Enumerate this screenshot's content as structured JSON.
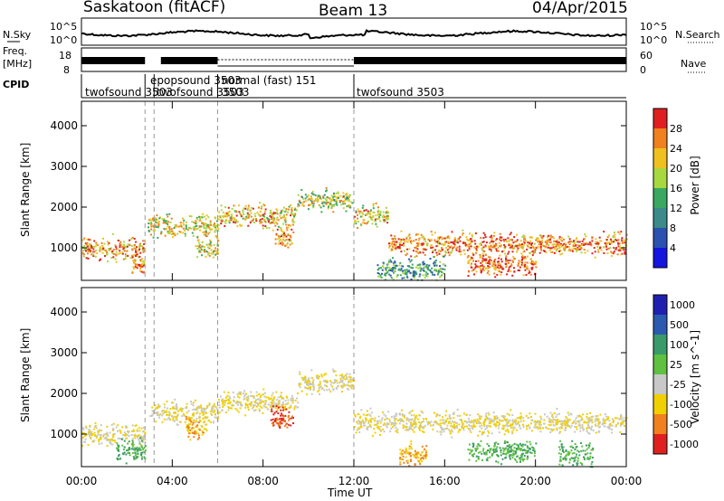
{
  "header": {
    "radar": "Saskatoon (fitACF)",
    "beam": "Beam 13",
    "date": "04/Apr/2015"
  },
  "top_panels": {
    "nsky_label": "N.Sky",
    "nsky_ticks": [
      "10^5",
      "10^0"
    ],
    "nsky_right_ticks": [
      "10^5",
      "10^0"
    ],
    "nsearch_label": "N.Search",
    "freq_label_1": "Freq.",
    "freq_label_2": "[MHz]",
    "freq_ticks": [
      "18",
      "8"
    ],
    "nave_ticks": [
      "60",
      "0"
    ],
    "nave_label": "Nave",
    "cpid_label": "CPID"
  },
  "programs": [
    {
      "name": "twofsound 3503",
      "start": 0.0
    },
    {
      "name": "epopsound 3503",
      "start": 3.2
    },
    {
      "name": "twofsound 3503",
      "start": 3.5
    },
    {
      "name": "normal (fast) 151",
      "start": 6.0
    },
    {
      "name": "3503",
      "start": 6.0
    },
    {
      "name": "twofsound 3503",
      "start": 12.0
    }
  ],
  "chart_data": [
    {
      "type": "heatmap",
      "parameter": "Power",
      "ylabel": "Slant Range [km]",
      "xlabel": "Time UT",
      "xlim": [
        0,
        24
      ],
      "ylim": [
        200,
        4600
      ],
      "x_ticks": [
        "00:00",
        "04:00",
        "08:00",
        "12:00",
        "16:00",
        "20:00",
        "00:00"
      ],
      "y_ticks": [
        1000,
        2000,
        3000,
        4000
      ],
      "colorbar_label": "Power [dB]",
      "colorbar_ticks": [
        4,
        8,
        12,
        16,
        20,
        24,
        28
      ],
      "colors": [
        "#1515e0",
        "#2c52b0",
        "#3c8a8a",
        "#3aa860",
        "#a8d840",
        "#f0c020",
        "#f08020",
        "#e02020"
      ],
      "scatter_bands": [
        {
          "t0": 0.0,
          "t1": 2.8,
          "range": 1000,
          "value": 24
        },
        {
          "t0": 2.2,
          "t1": 2.8,
          "range": 600,
          "value": 24
        },
        {
          "t0": 2.9,
          "t1": 6.0,
          "range": 1550,
          "value": 20
        },
        {
          "t0": 5.0,
          "t1": 6.0,
          "range": 1000,
          "value": 20
        },
        {
          "t0": 6.0,
          "t1": 9.5,
          "range": 1800,
          "value": 22
        },
        {
          "t0": 8.5,
          "t1": 9.3,
          "range": 1300,
          "value": 24
        },
        {
          "t0": 9.5,
          "t1": 11.9,
          "range": 2200,
          "value": 18
        },
        {
          "t0": 12.0,
          "t1": 13.5,
          "range": 1800,
          "value": 22
        },
        {
          "t0": 13.5,
          "t1": 24.0,
          "range": 1100,
          "value": 26
        },
        {
          "t0": 17.0,
          "t1": 20.0,
          "range": 600,
          "value": 28
        },
        {
          "t0": 13.0,
          "t1": 16.0,
          "range": 500,
          "value": 12
        }
      ]
    },
    {
      "type": "heatmap",
      "parameter": "Velocity",
      "ylabel": "Slant Range [km]",
      "xlabel": "Time UT",
      "xlim": [
        0,
        24
      ],
      "ylim": [
        200,
        4600
      ],
      "x_ticks": [
        "00:00",
        "04:00",
        "08:00",
        "12:00",
        "16:00",
        "20:00",
        "00:00"
      ],
      "y_ticks": [
        1000,
        2000,
        3000,
        4000
      ],
      "colorbar_label": "Velocity [m s^-1]",
      "colorbar_ticks": [
        1000,
        500,
        100,
        25,
        -25,
        -100,
        -500,
        -1000
      ],
      "colors": [
        "#2020b0",
        "#2c5ab0",
        "#3a9a6a",
        "#60c040",
        "#c8c8c8",
        "#f0d000",
        "#f08020",
        "#e02020"
      ],
      "scatter_bands": [
        {
          "t0": 0.0,
          "t1": 2.8,
          "range": 1000,
          "value": -25
        },
        {
          "t0": 1.5,
          "t1": 2.8,
          "range": 600,
          "value": 100
        },
        {
          "t0": 3.0,
          "t1": 6.0,
          "range": 1550,
          "value": -25
        },
        {
          "t0": 4.5,
          "t1": 5.5,
          "range": 1200,
          "value": -100
        },
        {
          "t0": 6.0,
          "t1": 9.5,
          "range": 1800,
          "value": -25
        },
        {
          "t0": 8.3,
          "t1": 9.3,
          "range": 1400,
          "value": -500
        },
        {
          "t0": 9.5,
          "t1": 12.0,
          "range": 2300,
          "value": -25
        },
        {
          "t0": 12.0,
          "t1": 24.0,
          "range": 1300,
          "value": -25
        },
        {
          "t0": 14.0,
          "t1": 15.2,
          "range": 500,
          "value": -100
        },
        {
          "t0": 17.0,
          "t1": 20.0,
          "range": 600,
          "value": 100
        },
        {
          "t0": 21.0,
          "t1": 22.5,
          "range": 500,
          "value": 100
        }
      ]
    }
  ]
}
